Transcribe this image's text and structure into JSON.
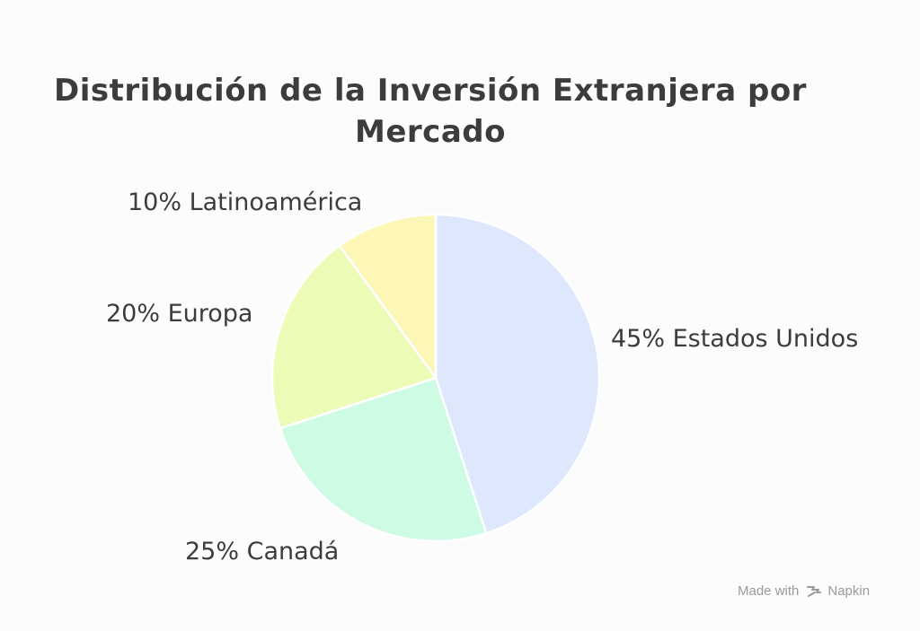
{
  "chart_data": {
    "type": "pie",
    "title": "Distribución de la Inversión Extranjera por Mercado",
    "slices": [
      {
        "name": "Estados Unidos",
        "value": 45,
        "label": "45% Estados Unidos",
        "color": "#dde8fd"
      },
      {
        "name": "Canadá",
        "value": 25,
        "label": "25% Canadá",
        "color": "#cdfbe3"
      },
      {
        "name": "Europa",
        "value": 20,
        "label": "20% Europa",
        "color": "#ecfbb6"
      },
      {
        "name": "Latinoamérica",
        "value": 10,
        "label": "10% Latinoamérica",
        "color": "#fcf6b7"
      }
    ],
    "start_angle": "12 o'clock",
    "direction": "clockwise"
  },
  "watermark": {
    "prefix": "Made with",
    "brand": "Napkin"
  }
}
